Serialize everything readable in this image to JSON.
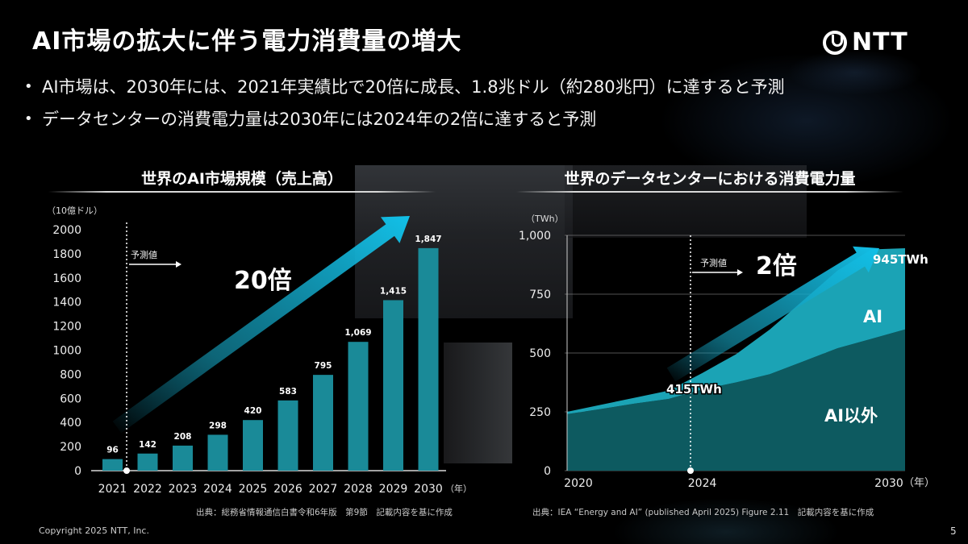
{
  "header": {
    "title": "AI市場の拡大に伴う電力消費量の増大",
    "logo_text": "NTT"
  },
  "bullets": [
    "AI市場は、2030年には、2021年実績比で20倍に成長、1.8兆ドル（約280兆円）に達すると予測",
    "データセンターの消費電力量は2030年には2024年の2倍に達すると予測"
  ],
  "footer": {
    "copyright": "Copyright 2025 NTT, Inc.",
    "page": "5"
  },
  "colors": {
    "bar": "#1a8a98",
    "arrow": "#12b4d8",
    "area_ai": "#1ba3b5",
    "area_non_ai": "#0d5a60"
  },
  "chart_data": [
    {
      "type": "bar",
      "title": "世界のAI市場規模（売上高）",
      "ylabel": "（10億ドル）",
      "xunit": "（年）",
      "categories": [
        "2021",
        "2022",
        "2023",
        "2024",
        "2025",
        "2026",
        "2027",
        "2028",
        "2029",
        "2030"
      ],
      "values": [
        96,
        142,
        208,
        298,
        420,
        583,
        795,
        1069,
        1415,
        1847
      ],
      "value_labels": [
        "96",
        "142",
        "208",
        "298",
        "420",
        "583",
        "795",
        "1,069",
        "1,415",
        "1,847"
      ],
      "ylim": [
        0,
        2000
      ],
      "yticks": [
        "0",
        "200",
        "400",
        "600",
        "800",
        "1000",
        "1200",
        "1400",
        "1600",
        "1800",
        "2000"
      ],
      "forecast_label": "予測値",
      "growth_label": "20倍",
      "source": "出典：総務省情報通信白書令和6年版　第9節　記載内容を基に作成"
    },
    {
      "type": "area",
      "title": "世界のデータセンターにおける消費電力量",
      "ylabel": "（TWh）",
      "xunit": "（年）",
      "x": [
        2020,
        2021,
        2022,
        2023,
        2024,
        2025,
        2026,
        2027,
        2028,
        2029,
        2030
      ],
      "xticks": [
        "2020",
        "2024",
        "2030"
      ],
      "ylim": [
        0,
        1000
      ],
      "yticks": [
        "0",
        "250",
        "500",
        "750",
        "1,000"
      ],
      "series": [
        {
          "name": "AI以外",
          "values": [
            240,
            262,
            285,
            305,
            345,
            375,
            410,
            465,
            520,
            560,
            600
          ]
        },
        {
          "name": "AI",
          "values": [
            10,
            18,
            25,
            35,
            70,
            120,
            190,
            260,
            330,
            380,
            345
          ]
        }
      ],
      "forecast_label": "予測値",
      "growth_label": "2倍",
      "annotations": [
        "415TWh",
        "945TWh"
      ],
      "source": "出典：IEA “Energy and AI” (published April 2025) Figure 2.11　記載内容を基に作成"
    }
  ]
}
